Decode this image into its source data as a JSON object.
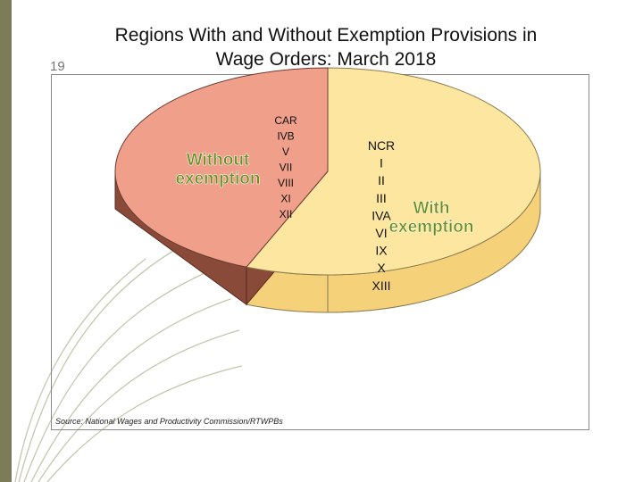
{
  "slide": {
    "title_line1": "Regions With and Without Exemption Provisions in",
    "title_line2": "Wage Orders: March 2018",
    "number": "19",
    "source": "Source: National Wages and Productivity Commission/RTWPBs"
  },
  "colors": {
    "without": "#f0a08a",
    "without_side": "#8a4a3a",
    "with": "#fde7a0",
    "with_side": "#f5d27a",
    "bar": "#7c7c5a"
  },
  "chart_data": {
    "type": "pie",
    "title": "Regions With and Without Exemption Provisions in Wage Orders: March 2018",
    "series": [
      {
        "name": "Without exemption",
        "label_lines": [
          "Without",
          "exemption"
        ],
        "regions": [
          "CAR",
          "IVB",
          "V",
          "VII",
          "VIII",
          "XI",
          "XII"
        ],
        "value": 7
      },
      {
        "name": "With exemption",
        "label_lines": [
          "With",
          "exemption"
        ],
        "regions": [
          "NCR",
          "I",
          "II",
          "III",
          "IVA",
          "VI",
          "IX",
          "X",
          "XIII"
        ],
        "value": 9
      }
    ]
  }
}
